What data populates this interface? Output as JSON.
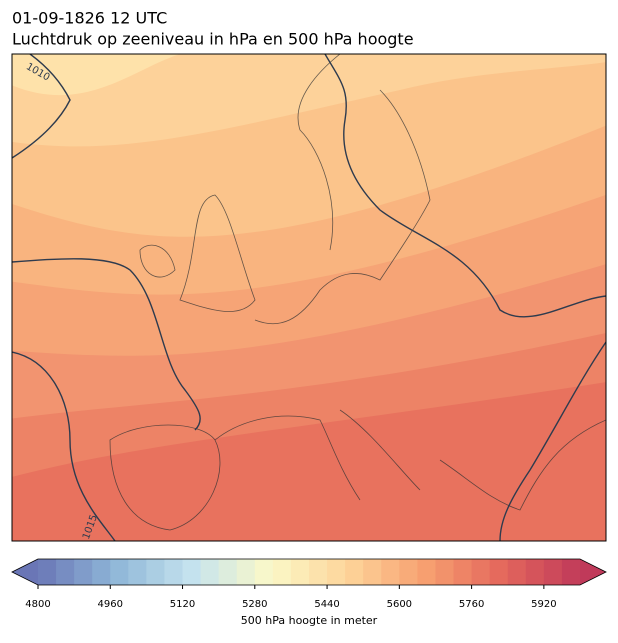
{
  "header": {
    "title": "01-09-1826 12 UTC",
    "subtitle": "Luchtdruk op zeeniveau in hPa en 500 hPa hoogte"
  },
  "map": {
    "isobar_labels": [
      "1010",
      "1015"
    ]
  },
  "colorbar": {
    "label": "500 hPa hoogte in meter",
    "clim": [
      4800,
      6000
    ],
    "n_levels": 30,
    "ticks": [
      4800,
      4960,
      5120,
      5280,
      5440,
      5600,
      5760,
      5920
    ],
    "colors": [
      "#6a76b6",
      "#8fb7d8",
      "#c5e3ee",
      "#fbf9c8",
      "#fdd49a",
      "#f7a070",
      "#e4675c",
      "#c03a5a"
    ]
  }
}
